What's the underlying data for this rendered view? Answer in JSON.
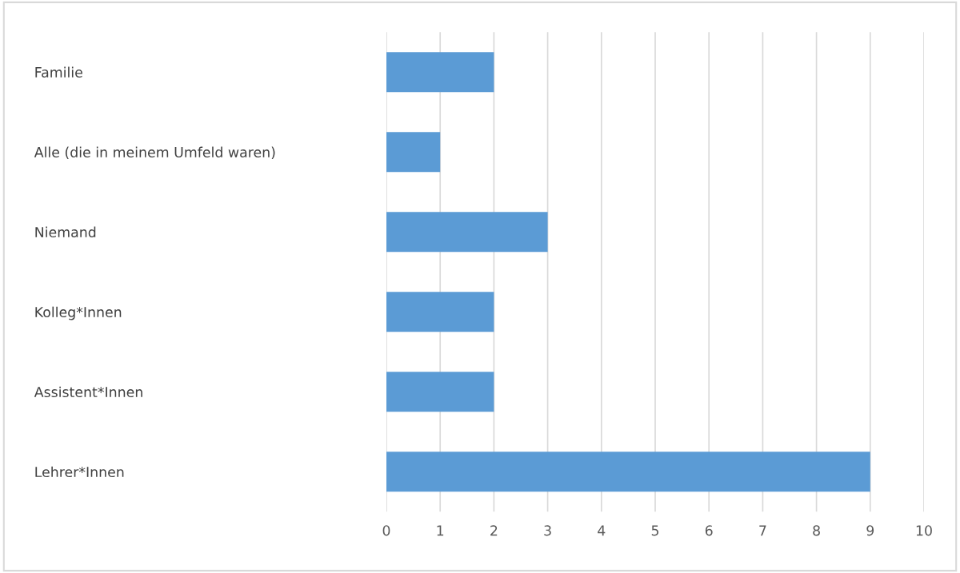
{
  "chart_data": {
    "type": "bar",
    "orientation": "horizontal",
    "categories": [
      "Familie",
      "Alle (die in meinem Umfeld waren)",
      "Niemand",
      "Kolleg*Innen",
      "Assistent*Innen",
      "Lehrer*Innen"
    ],
    "values": [
      2,
      1,
      3,
      2,
      2,
      9
    ],
    "color": "#5b9bd5",
    "xlim": [
      0,
      10
    ],
    "xticks": [
      0,
      1,
      2,
      3,
      4,
      5,
      6,
      7,
      8,
      9,
      10
    ],
    "grid": "x"
  }
}
